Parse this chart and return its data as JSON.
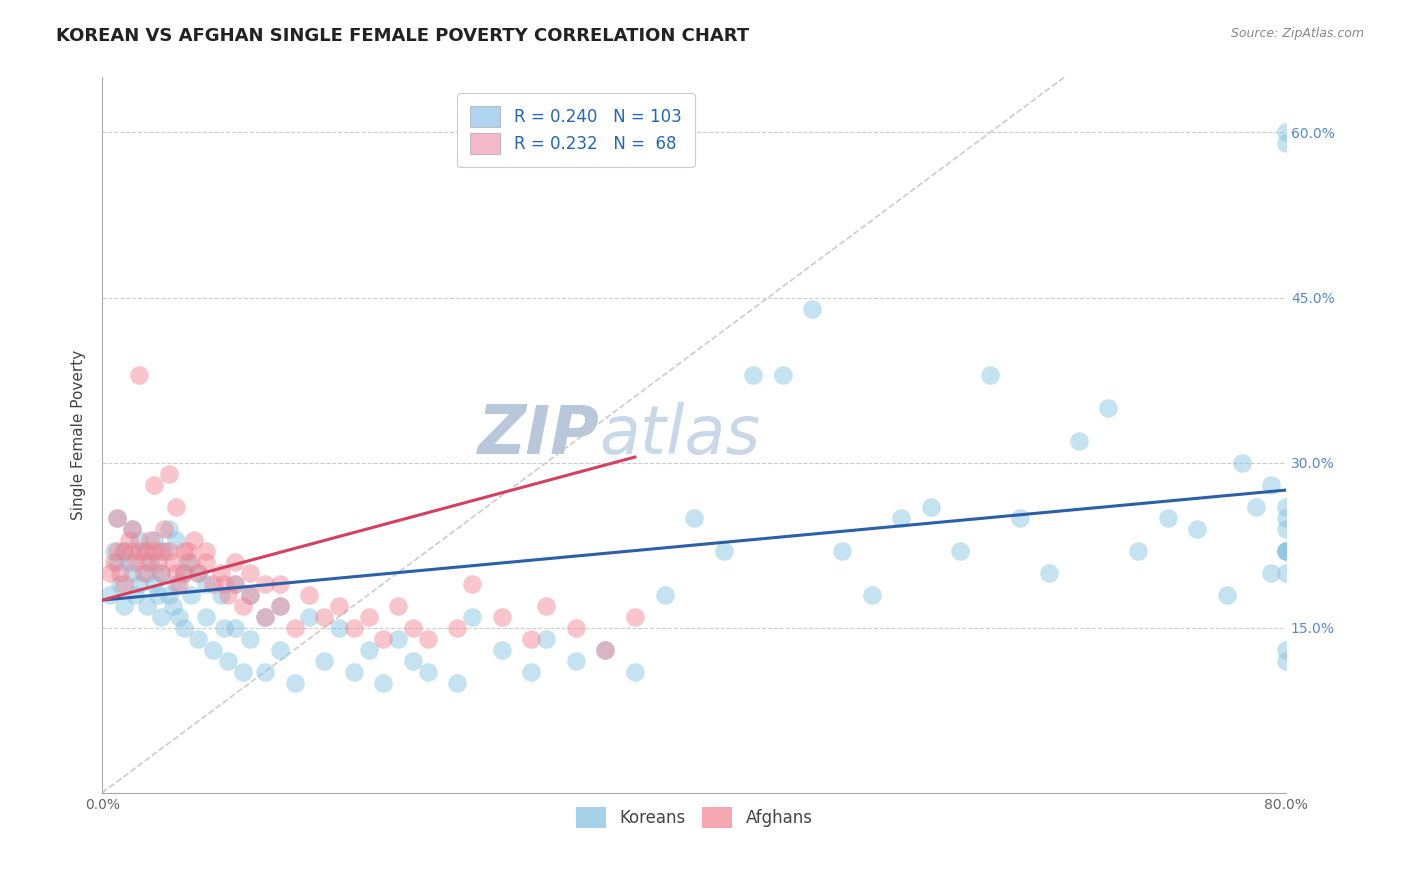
{
  "title": "KOREAN VS AFGHAN SINGLE FEMALE POVERTY CORRELATION CHART",
  "source": "Source: ZipAtlas.com",
  "ylabel": "Single Female Poverty",
  "watermark": "ZIPatlas",
  "xlim": [
    0.0,
    0.8
  ],
  "ylim": [
    0.0,
    0.65
  ],
  "xticks": [
    0.0,
    0.1,
    0.2,
    0.3,
    0.4,
    0.5,
    0.6,
    0.7,
    0.8
  ],
  "yticks": [
    0.0,
    0.15,
    0.3,
    0.45,
    0.6
  ],
  "korean_R": 0.24,
  "korean_N": 103,
  "afghan_R": 0.232,
  "afghan_N": 68,
  "korean_color": "#7fbfdf",
  "afghan_color": "#f08090",
  "korean_line_color": "#2c5fa8",
  "afghan_line_color": "#d44060",
  "diagonal_color": "#cccccc",
  "legend_box_color_korean": "#aed4ef",
  "legend_box_color_afghan": "#f4b8c8",
  "background_color": "#ffffff",
  "grid_color": "#cccccc",
  "title_fontsize": 13,
  "label_fontsize": 11,
  "tick_fontsize": 10,
  "legend_fontsize": 12,
  "watermark_fontsize": 48,
  "watermark_color": "#ccd8e8",
  "korean_x": [
    0.005,
    0.008,
    0.01,
    0.01,
    0.012,
    0.015,
    0.015,
    0.018,
    0.02,
    0.02,
    0.022,
    0.025,
    0.025,
    0.028,
    0.03,
    0.03,
    0.032,
    0.035,
    0.035,
    0.038,
    0.04,
    0.04,
    0.042,
    0.045,
    0.045,
    0.048,
    0.05,
    0.05,
    0.052,
    0.055,
    0.055,
    0.058,
    0.06,
    0.065,
    0.065,
    0.07,
    0.07,
    0.075,
    0.08,
    0.082,
    0.085,
    0.09,
    0.09,
    0.095,
    0.1,
    0.1,
    0.11,
    0.11,
    0.12,
    0.12,
    0.13,
    0.14,
    0.15,
    0.16,
    0.17,
    0.18,
    0.19,
    0.2,
    0.21,
    0.22,
    0.24,
    0.25,
    0.27,
    0.29,
    0.3,
    0.32,
    0.34,
    0.36,
    0.38,
    0.4,
    0.42,
    0.44,
    0.46,
    0.48,
    0.5,
    0.52,
    0.54,
    0.56,
    0.58,
    0.6,
    0.62,
    0.64,
    0.66,
    0.68,
    0.7,
    0.72,
    0.74,
    0.76,
    0.77,
    0.78,
    0.79,
    0.79,
    0.8,
    0.8,
    0.8,
    0.8,
    0.8,
    0.8,
    0.8,
    0.8,
    0.8,
    0.8,
    0.8
  ],
  "korean_y": [
    0.18,
    0.22,
    0.21,
    0.25,
    0.19,
    0.22,
    0.17,
    0.21,
    0.2,
    0.24,
    0.18,
    0.23,
    0.19,
    0.22,
    0.2,
    0.17,
    0.21,
    0.19,
    0.23,
    0.18,
    0.2,
    0.16,
    0.22,
    0.18,
    0.24,
    0.17,
    0.19,
    0.23,
    0.16,
    0.2,
    0.15,
    0.21,
    0.18,
    0.2,
    0.14,
    0.19,
    0.16,
    0.13,
    0.18,
    0.15,
    0.12,
    0.19,
    0.15,
    0.11,
    0.18,
    0.14,
    0.16,
    0.11,
    0.17,
    0.13,
    0.1,
    0.16,
    0.12,
    0.15,
    0.11,
    0.13,
    0.1,
    0.14,
    0.12,
    0.11,
    0.1,
    0.16,
    0.13,
    0.11,
    0.14,
    0.12,
    0.13,
    0.11,
    0.18,
    0.25,
    0.22,
    0.38,
    0.38,
    0.44,
    0.22,
    0.18,
    0.25,
    0.26,
    0.22,
    0.38,
    0.25,
    0.2,
    0.32,
    0.35,
    0.22,
    0.25,
    0.24,
    0.18,
    0.3,
    0.26,
    0.28,
    0.2,
    0.24,
    0.22,
    0.12,
    0.22,
    0.13,
    0.22,
    0.2,
    0.26,
    0.25,
    0.6,
    0.59
  ],
  "afghan_x": [
    0.005,
    0.008,
    0.01,
    0.01,
    0.012,
    0.015,
    0.015,
    0.018,
    0.02,
    0.02,
    0.022,
    0.025,
    0.025,
    0.028,
    0.03,
    0.03,
    0.032,
    0.035,
    0.035,
    0.038,
    0.04,
    0.04,
    0.042,
    0.045,
    0.045,
    0.048,
    0.05,
    0.05,
    0.052,
    0.055,
    0.055,
    0.058,
    0.06,
    0.062,
    0.065,
    0.07,
    0.07,
    0.075,
    0.08,
    0.082,
    0.085,
    0.09,
    0.09,
    0.095,
    0.1,
    0.1,
    0.11,
    0.11,
    0.12,
    0.12,
    0.13,
    0.14,
    0.15,
    0.16,
    0.17,
    0.18,
    0.19,
    0.2,
    0.21,
    0.22,
    0.24,
    0.25,
    0.27,
    0.29,
    0.3,
    0.32,
    0.34,
    0.36
  ],
  "afghan_y": [
    0.2,
    0.21,
    0.22,
    0.25,
    0.2,
    0.22,
    0.19,
    0.23,
    0.22,
    0.24,
    0.21,
    0.22,
    0.38,
    0.2,
    0.22,
    0.21,
    0.23,
    0.22,
    0.28,
    0.21,
    0.22,
    0.2,
    0.24,
    0.22,
    0.29,
    0.21,
    0.2,
    0.26,
    0.19,
    0.22,
    0.2,
    0.22,
    0.21,
    0.23,
    0.2,
    0.22,
    0.21,
    0.19,
    0.2,
    0.19,
    0.18,
    0.21,
    0.19,
    0.17,
    0.2,
    0.18,
    0.19,
    0.16,
    0.19,
    0.17,
    0.15,
    0.18,
    0.16,
    0.17,
    0.15,
    0.16,
    0.14,
    0.17,
    0.15,
    0.14,
    0.15,
    0.19,
    0.16,
    0.14,
    0.17,
    0.15,
    0.13,
    0.16
  ],
  "korean_line_x": [
    0.0,
    0.8
  ],
  "korean_line_y": [
    0.175,
    0.275
  ],
  "afghan_line_x": [
    0.0,
    0.36
  ],
  "afghan_line_y": [
    0.175,
    0.305
  ]
}
